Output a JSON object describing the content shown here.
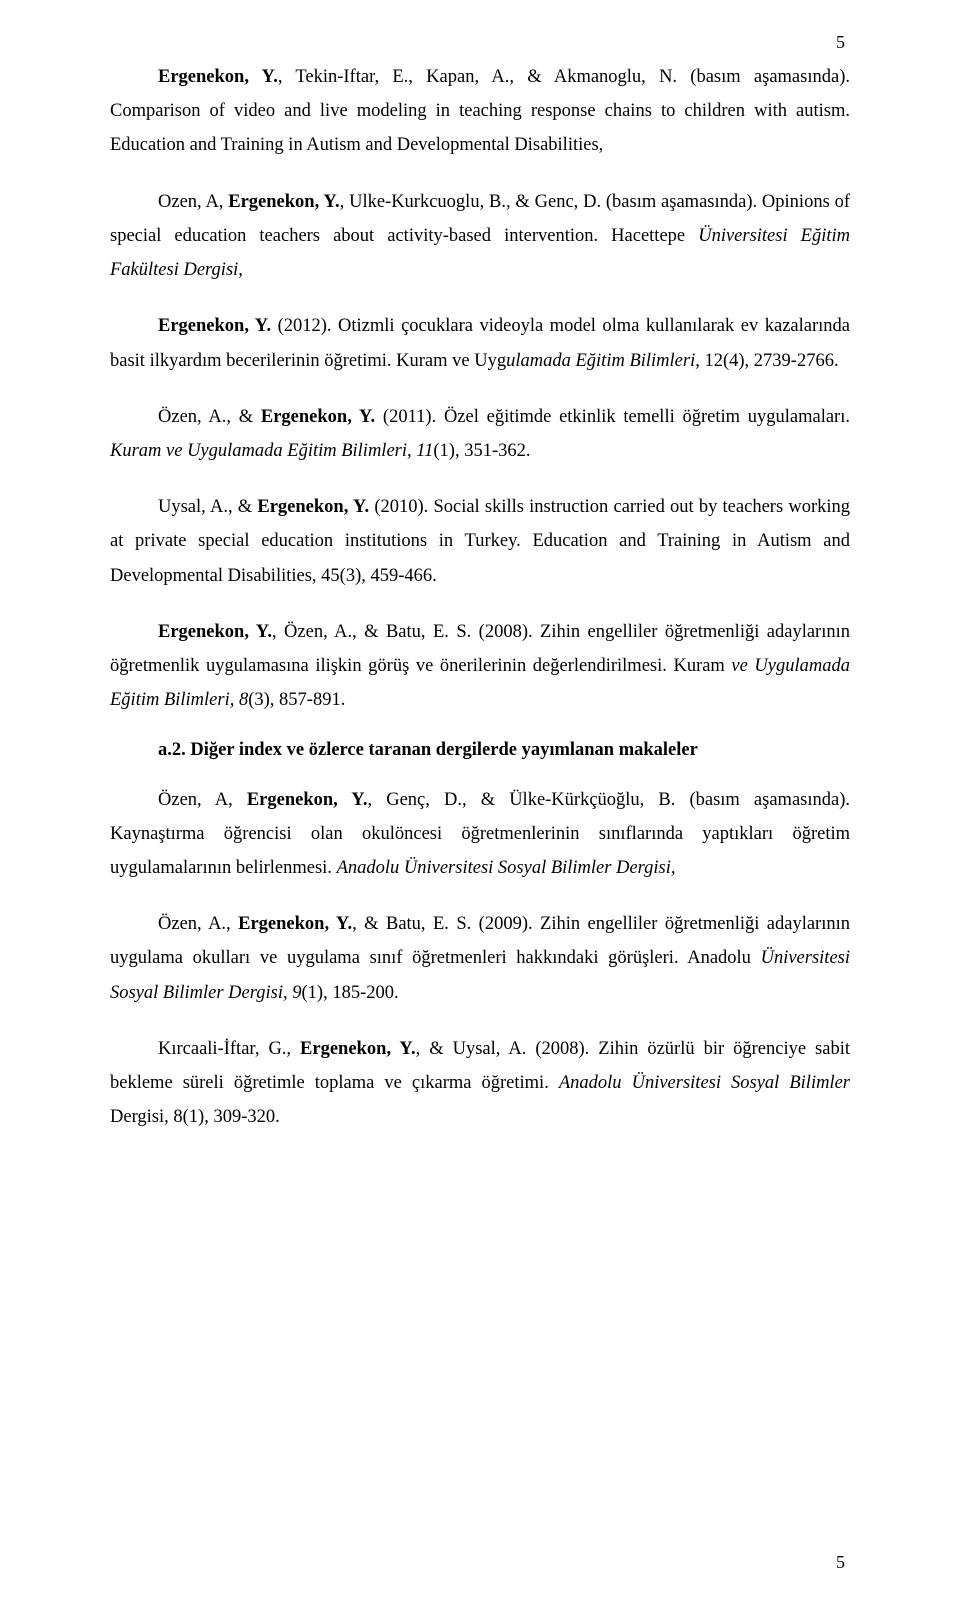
{
  "pageNumber": "5",
  "paragraphs": [
    {
      "segments": [
        {
          "text": "Ergenekon, Y.",
          "bold": true
        },
        {
          "text": ", Tekin-Iftar, E., Kapan, A., & Akmanoglu, N. (basım aşamasında). Comparison of video and live modeling in teaching response chains to children with autism. Education and Training in Autism and Developmental Disabilities,"
        }
      ]
    },
    {
      "segments": [
        {
          "text": "Ozen, A, "
        },
        {
          "text": "Ergenekon, Y.",
          "bold": true
        },
        {
          "text": ", Ulke-Kurkcuoglu, B., & Genc, D. (basım aşamasında). Opinions of special education teachers about activity-based intervention. Hacettepe "
        },
        {
          "text": "Üniversitesi Eğitim Fakültesi Dergisi,",
          "italic": true
        }
      ]
    },
    {
      "segments": [
        {
          "text": "Ergenekon, Y.",
          "bold": true
        },
        {
          "text": " (2012). Otizmli çocuklara videoyla model olma kullanılarak ev kazalarında basit ilkyardım becerilerinin öğretimi. Kuram ve Uyg"
        },
        {
          "text": "ulamada Eğitim Bilimleri, ",
          "italic": true
        },
        {
          "text": "12(4), 2739-2766."
        }
      ]
    },
    {
      "segments": [
        {
          "text": "Özen, A., & "
        },
        {
          "text": "Ergenekon, Y.",
          "bold": true
        },
        {
          "text": " (2011). Özel eğitimde etkinlik temelli öğretim uygulamaları. "
        },
        {
          "text": "Kuram ve Uygulamada Eğitim Bilimleri, 11",
          "italic": true
        },
        {
          "text": "(1), 351-362."
        }
      ]
    },
    {
      "segments": [
        {
          "text": "Uysal, A., & "
        },
        {
          "text": "Ergenekon, Y.",
          "bold": true
        },
        {
          "text": " (2010). Social skills instruction carried out by teachers working at private special education institutions in Turkey. Education and Training in Autism and Developmental Disabilities, 45(3), 459-466."
        }
      ]
    },
    {
      "segments": [
        {
          "text": "Ergenekon, Y.",
          "bold": true
        },
        {
          "text": ", Özen, A., & Batu, E. S. (2008). Zihin engelliler öğretmenliği adaylarının öğretmenlik uygulamasına ilişkin görüş ve önerilerinin değerlendirilmesi. Kuram "
        },
        {
          "text": "ve Uygulamada Eğitim Bilimleri, 8",
          "italic": true
        },
        {
          "text": "(3), 857-891."
        }
      ]
    }
  ],
  "sectionHeading": "a.2. Diğer index ve özlerce taranan dergilerde yayımlanan makaleler",
  "paragraphs2": [
    {
      "segments": [
        {
          "text": "Özen, A, "
        },
        {
          "text": "Ergenekon, Y.",
          "bold": true
        },
        {
          "text": ", Genç, D., & Ülke-Kürkçüoğlu, B. (basım aşamasında). Kaynaştırma öğrencisi olan okulöncesi öğretmenlerinin sınıflarında yaptıkları öğretim uygulamalarının belirlenmesi. "
        },
        {
          "text": "Anadolu Üniversitesi Sosyal Bilimler Dergisi,",
          "italic": true
        }
      ]
    },
    {
      "segments": [
        {
          "text": "Özen, A., "
        },
        {
          "text": "Ergenekon, Y.",
          "bold": true
        },
        {
          "text": ", & Batu, E. S. (2009). Zihin engelliler öğretmenliği adaylarının uygulama okulları ve uygulama sınıf öğretmenleri hakkındaki görüşleri. Anadolu "
        },
        {
          "text": "Üniversitesi Sosyal Bilimler Dergisi, 9",
          "italic": true
        },
        {
          "text": "(1), 185-200."
        }
      ]
    },
    {
      "segments": [
        {
          "text": "Kırcaali-İftar, G., "
        },
        {
          "text": "Ergenekon, Y.",
          "bold": true
        },
        {
          "text": ", & Uysal, A. (2008). Zihin özürlü bir öğrenciye sabit bekleme süreli öğretimle toplama ve çıkarma öğretimi. "
        },
        {
          "text": "Anadolu Üniversitesi Sosyal Bilimler ",
          "italic": true
        },
        {
          "text": "Dergisi, 8(1), 309-320."
        }
      ]
    }
  ]
}
